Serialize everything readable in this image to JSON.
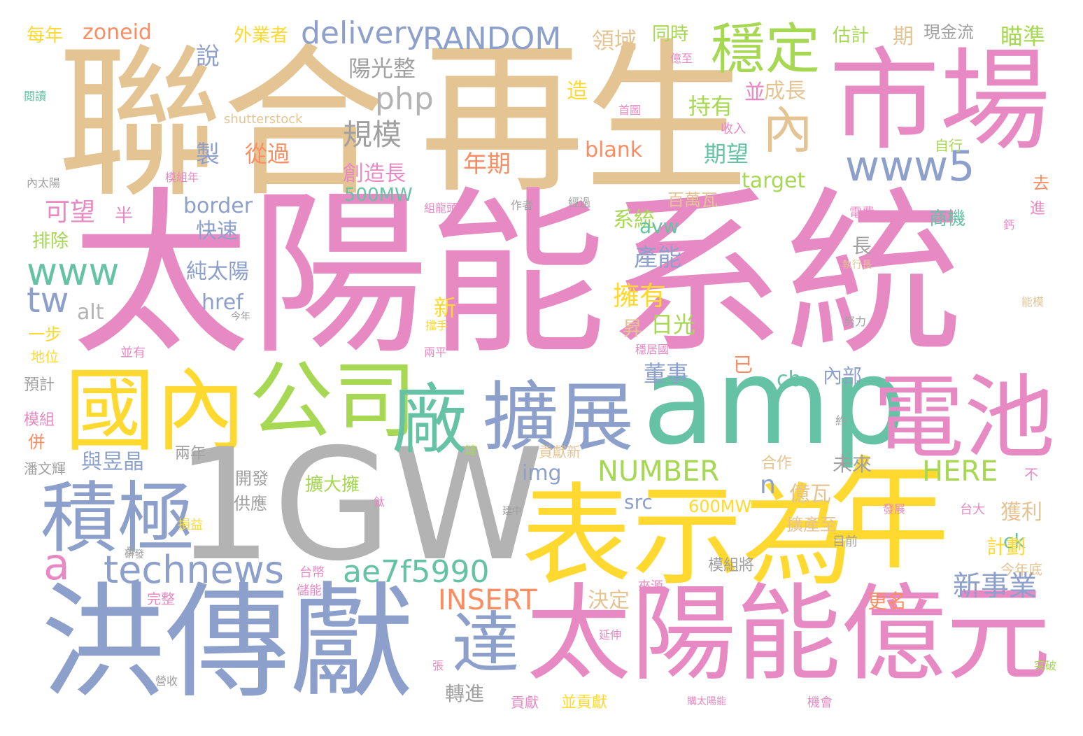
{
  "colors": {
    "tan": "#e5c494",
    "pink": "#e78ac3",
    "periwinkle": "#8da0cb",
    "teal": "#66c2a5",
    "yellow": "#ffd92f",
    "lime": "#a6d854",
    "orange": "#fc8d62",
    "gray": "#b3b3b3",
    "midgray": "#a0a0a0"
  },
  "words": [
    "聯合",
    "再生",
    "市場",
    "太陽能系統",
    "洪傳獻",
    "國內",
    "1GW",
    "amp",
    "電池",
    "表示為",
    "年",
    "太陽能億元",
    "積極",
    "公司",
    "廠",
    "擴展",
    "達",
    "穩定",
    "內",
    "www5",
    "technews",
    "a",
    "ae7f5990",
    "www",
    "tw",
    "delivery",
    "RANDOM",
    "php",
    "規模",
    "陽光整",
    "INSERT",
    "NUMBER",
    "HERE",
    "新事業",
    "zoneid",
    "外業者",
    "說",
    "領域",
    "同時",
    "估計",
    "期",
    "現金流",
    "瞄準",
    "每年",
    "製",
    "從過",
    "年期",
    "創造長",
    "blank",
    "成長",
    "並",
    "造",
    "持有",
    "期望",
    "target",
    "500MW",
    "border",
    "可望",
    "半",
    "快速",
    "純太陽",
    "href",
    "alt",
    "系統",
    "avw",
    "產能",
    "擁有",
    "昇",
    "日光",
    "新",
    "已",
    "cb",
    "內部",
    "董事",
    "img",
    "src",
    "600MW",
    "獲利",
    "ck",
    "計劃",
    "更名",
    "決定",
    "轉進",
    "億瓦",
    "n",
    "未來",
    "合作",
    "開發",
    "擴大擁",
    "與昱晶",
    "供應",
    "兩年",
    "一步",
    "排除",
    "地位",
    "並有",
    "預計",
    "模組",
    "併",
    "潘文輝",
    "損益",
    "研發",
    "完整",
    "儲能",
    "台幣",
    "來源",
    "延伸",
    "並貢獻",
    "貢獻",
    "張",
    "營收",
    "機會",
    "購太陽能",
    "突破",
    "今年底",
    "模組將",
    "擴產至",
    "目前",
    "發展",
    "台大",
    "不",
    "約",
    "鏈",
    "鈦",
    "建中",
    "貢獻新",
    "商機",
    "百萬瓦",
    "電費",
    "努力",
    "能模",
    "進",
    "去",
    "自行",
    "收入",
    "經過",
    "作者",
    "組龍頭",
    "模組年",
    "首圖",
    "內太陽",
    "億至",
    "閱讀",
    "shutterstock",
    "今年",
    "擋手",
    "兩平",
    "穩居國",
    "執行長",
    "鈣",
    "長",
    "發"
  ]
}
